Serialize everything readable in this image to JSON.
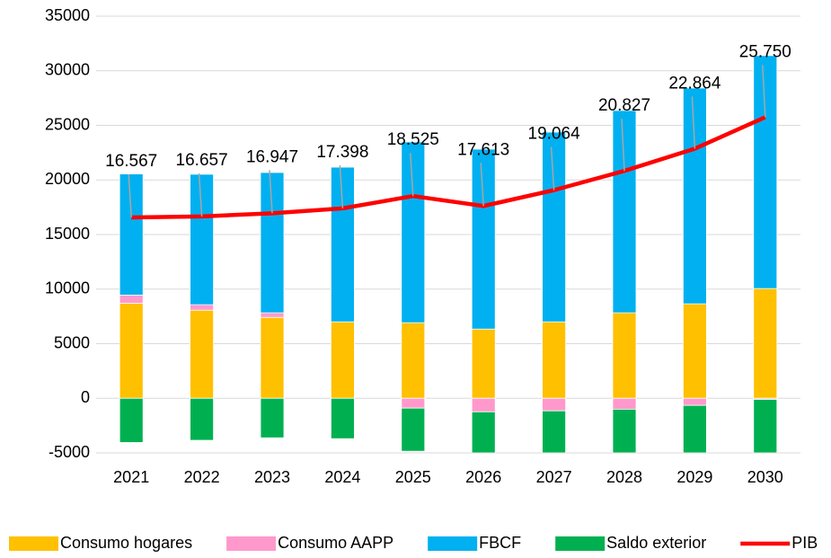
{
  "chart_data": {
    "type": "bar",
    "stacked": true,
    "categories": [
      "2021",
      "2022",
      "2023",
      "2024",
      "2025",
      "2026",
      "2027",
      "2028",
      "2029",
      "2030"
    ],
    "series": [
      {
        "name": "Consumo hogares",
        "color": "#FFC000",
        "values": [
          8700,
          8070,
          7410,
          7000,
          6920,
          6340,
          7000,
          7830,
          8650,
          10050
        ]
      },
      {
        "name": "Consumo AAPP",
        "color": "#FF99CC",
        "values": [
          750,
          500,
          420,
          0,
          -900,
          -1240,
          -1150,
          -1000,
          -650,
          -100
        ]
      },
      {
        "name": "FBCF",
        "color": "#00B0F0",
        "values": [
          11100,
          11950,
          12850,
          14170,
          16560,
          16480,
          17380,
          18530,
          19770,
          21340
        ]
      },
      {
        "name": "Saldo exterior",
        "color": "#00B050",
        "values": [
          -4050,
          -3850,
          -3620,
          -3700,
          -3950,
          -3760,
          -3850,
          -4000,
          -4350,
          -4900
        ]
      },
      {
        "name": "PIB",
        "type": "line",
        "color": "#FF0000",
        "values": [
          16567,
          16657,
          16947,
          17398,
          18525,
          17613,
          19064,
          20827,
          22864,
          25750
        ],
        "value_labels": [
          "16.567",
          "16.657",
          "16.947",
          "17.398",
          "18.525",
          "17.613",
          "19.064",
          "20.827",
          "22.864",
          "25.750"
        ]
      }
    ],
    "ylim": [
      -5000,
      35000
    ],
    "yticks": [
      -5000,
      0,
      5000,
      10000,
      15000,
      20000,
      25000,
      30000,
      35000
    ],
    "grid": true,
    "legend": "bottom"
  }
}
